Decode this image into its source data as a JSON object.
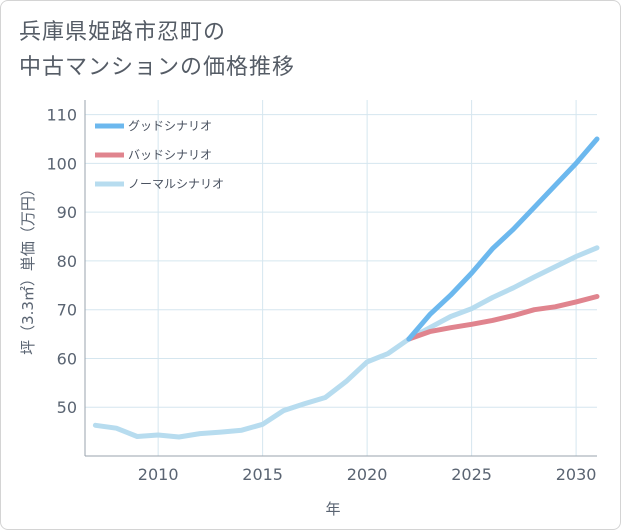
{
  "title": {
    "line1": "兵庫県姫路市忍町の",
    "line2": "中古マンションの価格推移"
  },
  "chart_data": {
    "type": "line",
    "xlabel": "年",
    "ylabel": "坪（3.3㎡）単価（万円）",
    "xlim": [
      2006.5,
      2031
    ],
    "ylim": [
      40,
      113
    ],
    "x_ticks": [
      2010,
      2015,
      2020,
      2025,
      2030
    ],
    "y_ticks": [
      50,
      60,
      70,
      80,
      90,
      100,
      110
    ],
    "grid": true,
    "legend_position": "top-left",
    "series": [
      {
        "name": "グッドシナリオ",
        "color": "#6cb8ee",
        "x": [
          2022,
          2023,
          2024,
          2025,
          2026,
          2027,
          2028,
          2029,
          2030,
          2031
        ],
        "y": [
          64.0,
          69.0,
          73.0,
          77.5,
          82.5,
          86.5,
          91.0,
          95.5,
          100.0,
          105.0
        ]
      },
      {
        "name": "バッドシナリオ",
        "color": "#e0848e",
        "x": [
          2022,
          2023,
          2024,
          2025,
          2026,
          2027,
          2028,
          2029,
          2030,
          2031
        ],
        "y": [
          64.0,
          65.5,
          66.3,
          67.0,
          67.8,
          68.8,
          70.0,
          70.6,
          71.6,
          72.7
        ]
      },
      {
        "name": "ノーマルシナリオ",
        "color": "#b7dcef",
        "x": [
          2007,
          2008,
          2009,
          2010,
          2011,
          2012,
          2013,
          2014,
          2015,
          2016,
          2017,
          2018,
          2019,
          2020,
          2021,
          2022,
          2023,
          2024,
          2025,
          2026,
          2027,
          2028,
          2029,
          2030,
          2031
        ],
        "y": [
          46.3,
          45.7,
          44.0,
          44.3,
          43.9,
          44.6,
          44.9,
          45.3,
          46.5,
          49.3,
          50.7,
          52.0,
          55.3,
          59.3,
          61.0,
          64.0,
          66.3,
          68.6,
          70.2,
          72.5,
          74.5,
          76.7,
          78.8,
          80.9,
          82.7
        ]
      }
    ]
  }
}
